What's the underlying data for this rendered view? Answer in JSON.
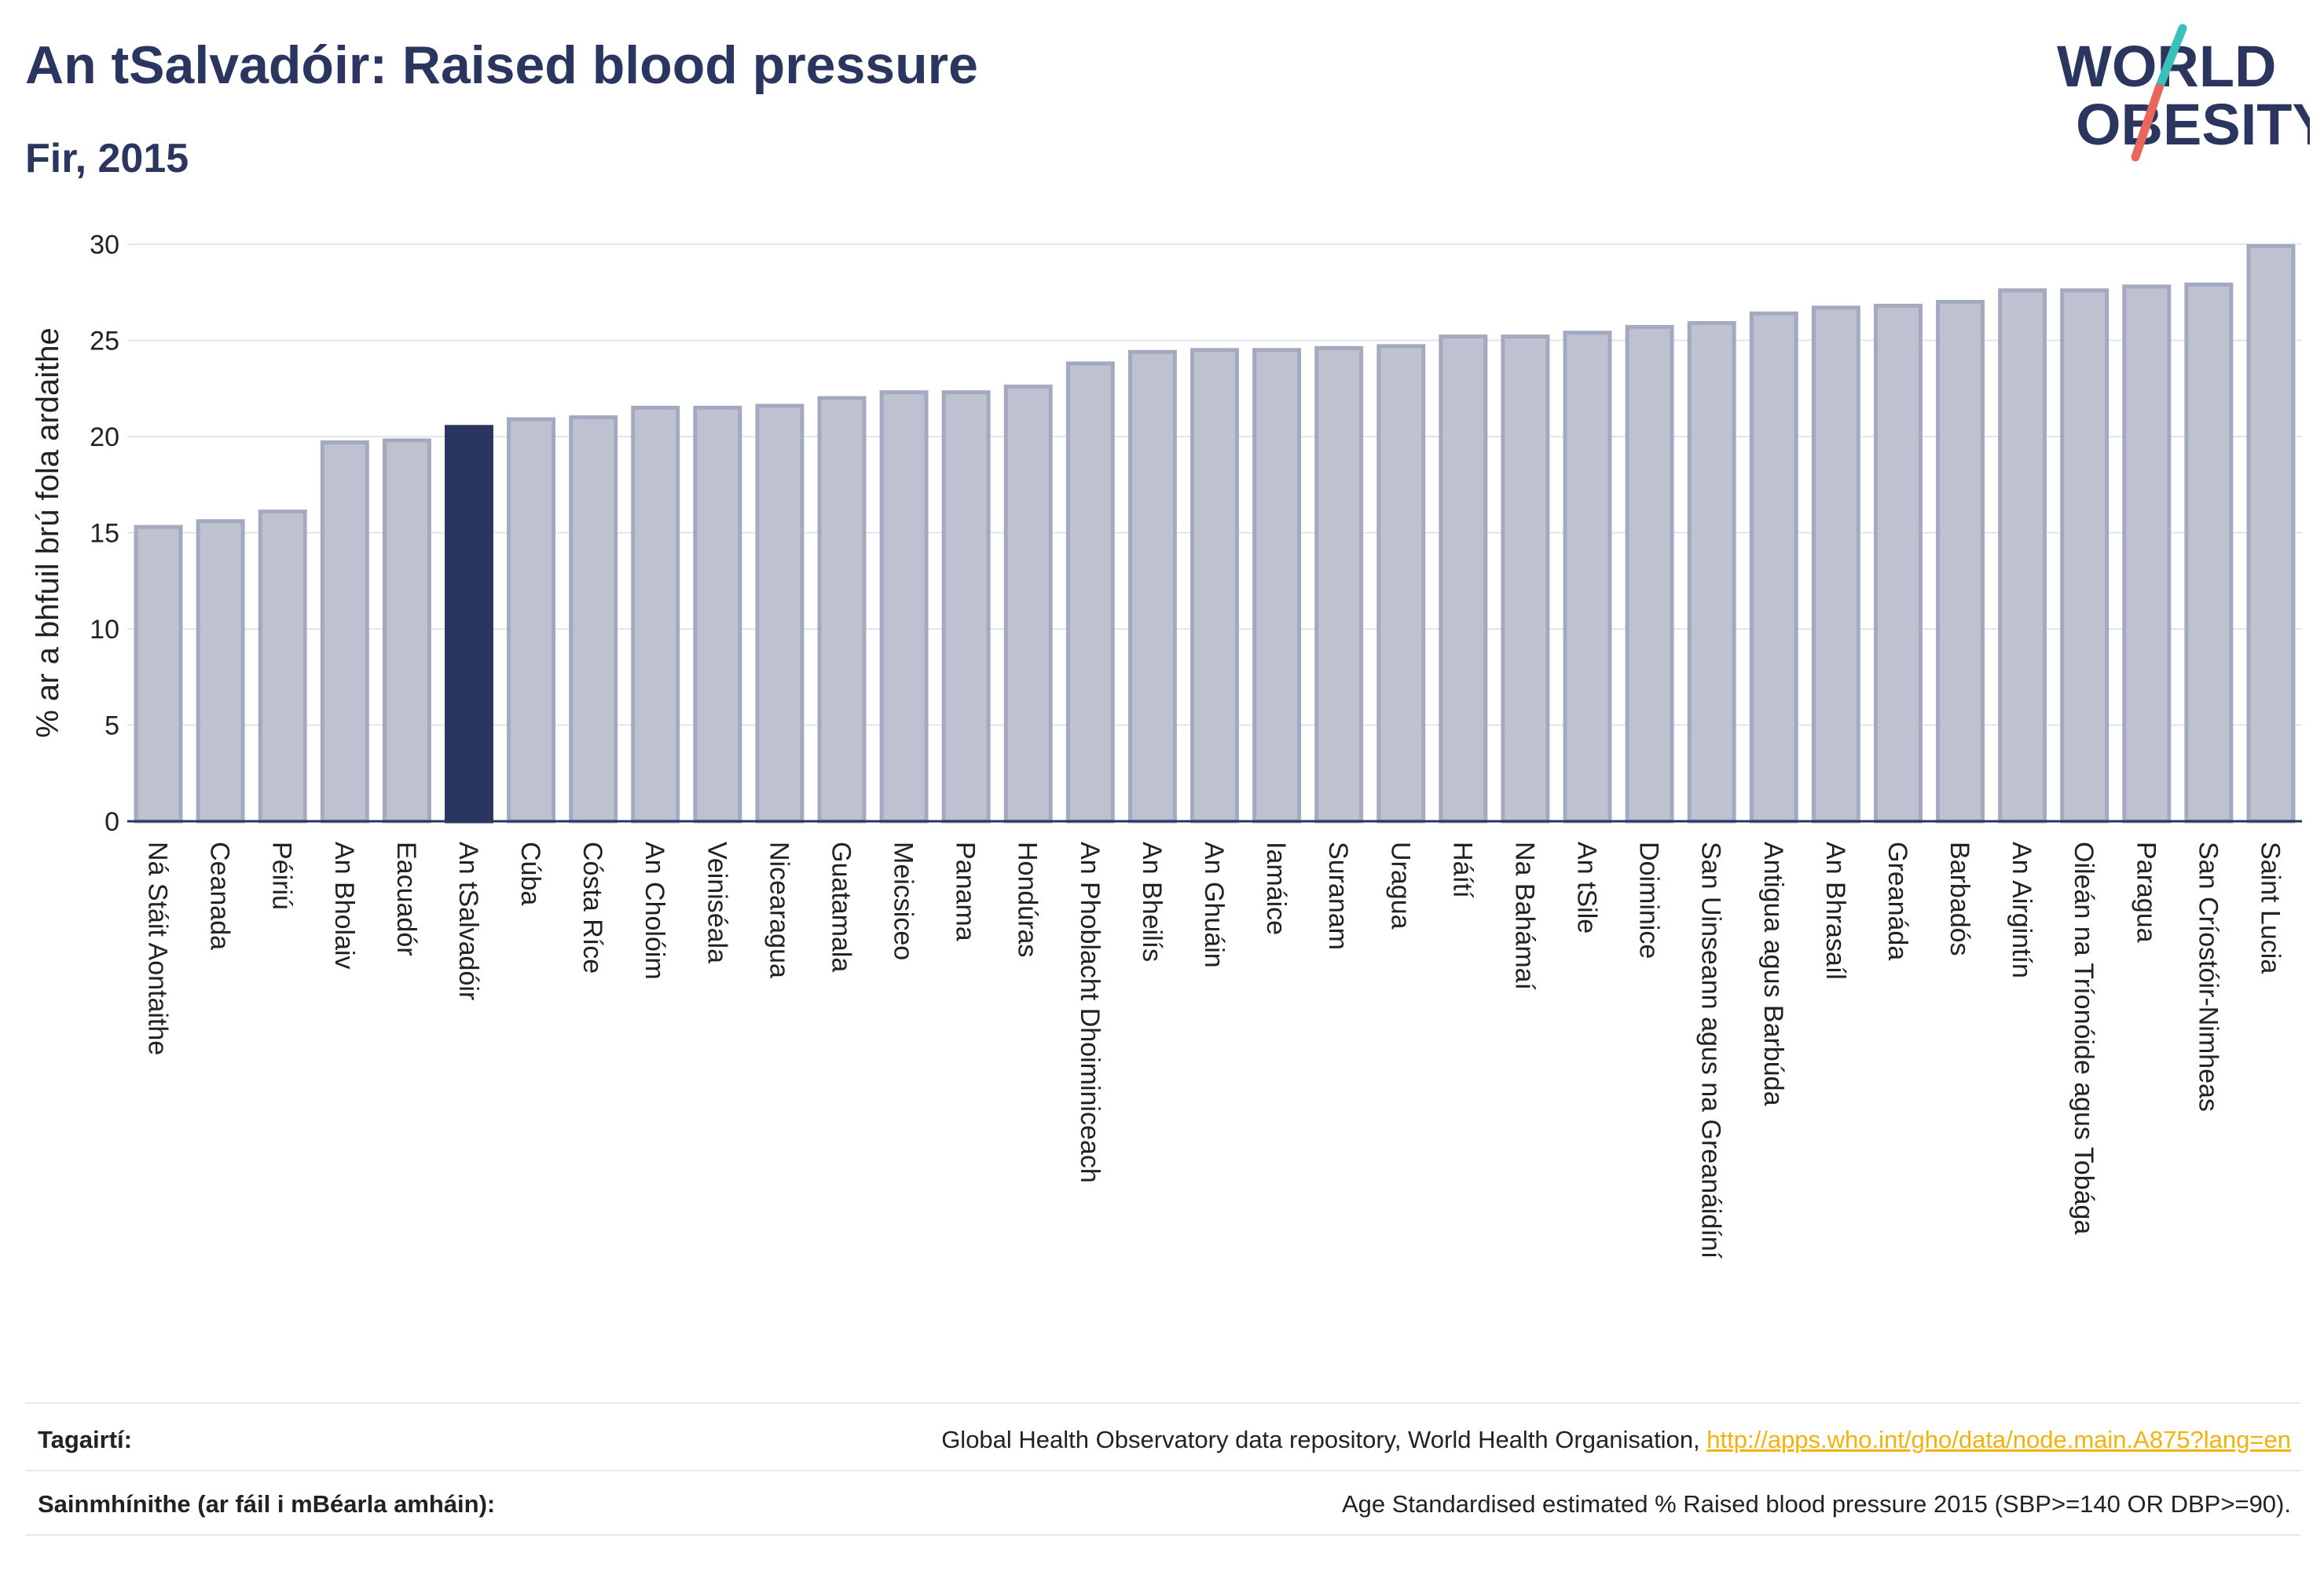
{
  "header": {
    "title": "An tSalvadóir: Raised blood pressure",
    "subtitle": "Fir, 2015"
  },
  "logo": {
    "line1": "WORLD",
    "line2": "OBESITY"
  },
  "colors": {
    "highlight": "#2b3660",
    "bar_fill": "#bec2d0",
    "bar_stroke": "#a3a9bf",
    "link": "#f3b10a",
    "logo_teal": "#3bbfb9",
    "logo_red": "#e8665a"
  },
  "chart_data": {
    "type": "bar",
    "ylabel": "% ar a bhfuil brú fola ardaithe",
    "ylim": [
      0,
      30
    ],
    "yticks": [
      0,
      5,
      10,
      15,
      20,
      25,
      30
    ],
    "grid": true,
    "highlight": "An tSalvadóir",
    "categories": [
      "Ná Stáit Aontaithe",
      "Ceanada",
      "Péiriú",
      "An Bholaiv",
      "Eacuadór",
      "An tSalvadóir",
      "Cúba",
      "Cósta Ríce",
      "An Cholóim",
      "Veiniséala",
      "Nicearagua",
      "Guatamala",
      "Meicsiceo",
      "Panama",
      "Hondúras",
      "An Phoblacht Dhoiminiceach",
      "An Bheilís",
      "An Ghuáin",
      "Iamáice",
      "Suranam",
      "Uragua",
      "Háítí",
      "Na Bahámaí",
      "An tSile",
      "Doiminice",
      "San Uinseann agus na Greanáidíní",
      "Antigua agus Barbúda",
      "An Bhrasaíl",
      "Greanáda",
      "Barbadós",
      "An Airgintín",
      "Oileán na Tríonóide agus Tobága",
      "Paragua",
      "San Críostóir-Nimheas",
      "Saint Lucia"
    ],
    "values": [
      15.3,
      15.6,
      16.1,
      19.7,
      19.8,
      20.5,
      20.9,
      21.0,
      21.5,
      21.5,
      21.6,
      22.0,
      22.3,
      22.3,
      22.6,
      23.8,
      24.4,
      24.5,
      24.5,
      24.6,
      24.7,
      25.2,
      25.2,
      25.4,
      25.7,
      25.9,
      26.4,
      26.7,
      26.8,
      27.0,
      27.6,
      27.6,
      27.8,
      27.9,
      29.9
    ]
  },
  "footer": {
    "references_label": "Tagairtí:",
    "references_text": "Global Health Observatory data repository, World Health Organisation, ",
    "references_link": "http://apps.who.int/gho/data/node.main.A875?lang=en",
    "definitions_label": "Sainmhínithe (ar fáil i mBéarla amháin):",
    "definitions_text": "Age Standardised estimated % Raised blood pressure 2015 (SBP>=140 OR DBP>=90)."
  }
}
